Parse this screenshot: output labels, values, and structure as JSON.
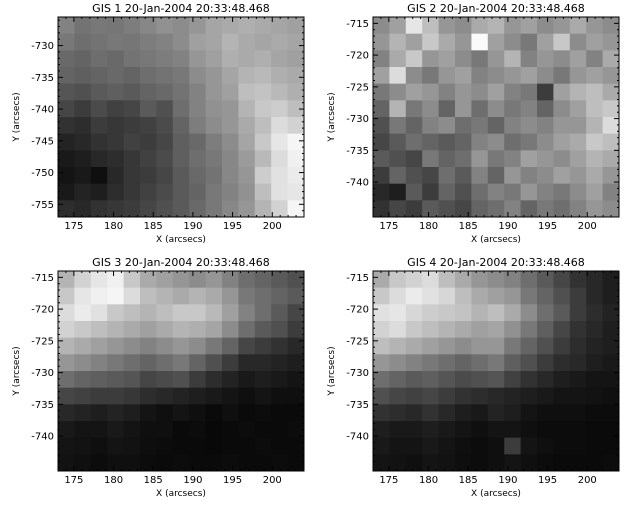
{
  "chart_data": [
    {
      "type": "heatmap",
      "title": "GIS 1 20-Jan-2004 20:33:48.468",
      "xlabel": "X (arcsecs)",
      "ylabel": "Y (arcsecs)",
      "xlim": [
        173,
        204
      ],
      "ylim": [
        -757,
        -725.5
      ],
      "xticks": [
        175,
        180,
        185,
        190,
        195,
        200
      ],
      "yticks": [
        -755,
        -750,
        -745,
        -740,
        -735,
        -730
      ],
      "z": [
        [
          130,
          115,
          120,
          118,
          125,
          135,
          145,
          140,
          150,
          165,
          170,
          175,
          170,
          165,
          160
        ],
        [
          120,
          110,
          115,
          120,
          118,
          125,
          130,
          140,
          160,
          165,
          180,
          170,
          165,
          170,
          165
        ],
        [
          105,
          100,
          110,
          105,
          115,
          120,
          125,
          130,
          150,
          160,
          175,
          170,
          175,
          165,
          160
        ],
        [
          100,
          95,
          100,
          105,
          100,
          110,
          115,
          120,
          140,
          150,
          165,
          180,
          185,
          175,
          170
        ],
        [
          85,
          80,
          90,
          95,
          90,
          100,
          105,
          115,
          130,
          150,
          160,
          190,
          195,
          185,
          175
        ],
        [
          70,
          60,
          75,
          65,
          70,
          90,
          80,
          110,
          130,
          145,
          150,
          180,
          200,
          205,
          190
        ],
        [
          50,
          45,
          60,
          55,
          60,
          65,
          75,
          100,
          125,
          140,
          150,
          170,
          190,
          220,
          210
        ],
        [
          35,
          40,
          50,
          55,
          65,
          60,
          70,
          95,
          105,
          125,
          140,
          165,
          200,
          230,
          245
        ],
        [
          25,
          30,
          40,
          45,
          55,
          65,
          75,
          95,
          110,
          120,
          135,
          155,
          185,
          220,
          240
        ],
        [
          20,
          25,
          15,
          40,
          55,
          60,
          70,
          90,
          105,
          115,
          135,
          150,
          205,
          225,
          235
        ],
        [
          25,
          35,
          30,
          45,
          55,
          65,
          75,
          90,
          100,
          120,
          130,
          145,
          190,
          225,
          230
        ],
        [
          45,
          40,
          50,
          55,
          60,
          70,
          80,
          90,
          105,
          120,
          135,
          150,
          180,
          210,
          245
        ]
      ]
    },
    {
      "type": "heatmap",
      "title": "GIS 2 20-Jan-2004 20:33:48.468",
      "xlabel": "X (arcsecs)",
      "ylabel": "Y (arcsecs)",
      "xlim": [
        173,
        204
      ],
      "ylim": [
        -745.5,
        -714
      ],
      "xticks": [
        175,
        180,
        185,
        190,
        195,
        200
      ],
      "yticks": [
        -740,
        -735,
        -730,
        -725,
        -720,
        -715
      ],
      "z": [
        [
          140,
          160,
          230,
          190,
          150,
          140,
          170,
          180,
          150,
          160,
          140,
          150,
          170,
          150,
          140
        ],
        [
          150,
          180,
          160,
          200,
          170,
          150,
          250,
          160,
          140,
          120,
          160,
          200,
          140,
          160,
          150
        ],
        [
          130,
          170,
          200,
          150,
          160,
          140,
          120,
          150,
          180,
          130,
          150,
          140,
          160,
          130,
          170
        ],
        [
          160,
          220,
          140,
          120,
          150,
          160,
          130,
          140,
          150,
          160,
          140,
          120,
          150,
          160,
          150
        ],
        [
          120,
          140,
          160,
          150,
          130,
          150,
          140,
          160,
          130,
          120,
          60,
          160,
          180,
          190,
          170
        ],
        [
          100,
          180,
          120,
          140,
          100,
          150,
          110,
          140,
          120,
          130,
          100,
          140,
          160,
          190,
          200
        ],
        [
          80,
          120,
          100,
          130,
          140,
          110,
          120,
          100,
          130,
          140,
          130,
          150,
          150,
          180,
          220
        ],
        [
          70,
          90,
          110,
          100,
          90,
          100,
          130,
          140,
          110,
          120,
          140,
          160,
          170,
          200,
          190
        ],
        [
          90,
          80,
          70,
          120,
          100,
          110,
          150,
          120,
          130,
          160,
          150,
          140,
          160,
          180,
          170
        ],
        [
          60,
          100,
          80,
          70,
          110,
          90,
          130,
          100,
          150,
          130,
          140,
          160,
          150,
          170,
          150
        ],
        [
          40,
          30,
          90,
          60,
          100,
          80,
          110,
          130,
          120,
          150,
          130,
          120,
          140,
          160,
          130
        ],
        [
          50,
          70,
          60,
          90,
          80,
          70,
          100,
          110,
          130,
          100,
          120,
          110,
          130,
          150,
          140
        ]
      ]
    },
    {
      "type": "heatmap",
      "title": "GIS 3 20-Jan-2004 20:33:48.468",
      "xlabel": "X (arcsecs)",
      "ylabel": "Y (arcsecs)",
      "xlim": [
        173,
        204
      ],
      "ylim": [
        -745.5,
        -714
      ],
      "xticks": [
        175,
        180,
        185,
        190,
        195,
        200
      ],
      "yticks": [
        -740,
        -735,
        -730,
        -725,
        -720,
        -715
      ],
      "z": [
        [
          180,
          210,
          230,
          240,
          200,
          170,
          160,
          150,
          140,
          150,
          130,
          110,
          100,
          90,
          80
        ],
        [
          200,
          230,
          240,
          245,
          220,
          190,
          180,
          170,
          180,
          170,
          150,
          120,
          110,
          100,
          90
        ],
        [
          220,
          235,
          225,
          200,
          190,
          180,
          190,
          200,
          200,
          185,
          160,
          130,
          110,
          90,
          70
        ],
        [
          210,
          200,
          190,
          180,
          170,
          160,
          170,
          180,
          175,
          165,
          140,
          110,
          90,
          80,
          60
        ],
        [
          180,
          170,
          160,
          150,
          140,
          130,
          140,
          150,
          140,
          120,
          100,
          70,
          60,
          50,
          40
        ],
        [
          150,
          140,
          130,
          120,
          110,
          100,
          110,
          120,
          100,
          80,
          60,
          40,
          40,
          35,
          30
        ],
        [
          110,
          100,
          95,
          90,
          85,
          70,
          75,
          80,
          60,
          45,
          35,
          25,
          30,
          25,
          20
        ],
        [
          70,
          65,
          60,
          60,
          55,
          45,
          40,
          35,
          30,
          25,
          20,
          15,
          20,
          15,
          15
        ],
        [
          40,
          35,
          30,
          35,
          30,
          20,
          15,
          20,
          15,
          10,
          15,
          10,
          12,
          10,
          10
        ],
        [
          25,
          20,
          20,
          25,
          20,
          15,
          15,
          10,
          12,
          8,
          10,
          12,
          10,
          10,
          12
        ],
        [
          20,
          18,
          15,
          20,
          18,
          14,
          12,
          10,
          10,
          8,
          10,
          10,
          12,
          10,
          10
        ],
        [
          18,
          15,
          12,
          15,
          15,
          12,
          10,
          12,
          10,
          10,
          12,
          10,
          10,
          12,
          10
        ]
      ]
    },
    {
      "type": "heatmap",
      "title": "GIS 4 20-Jan-2004 20:33:48.468",
      "xlabel": "X (arcsecs)",
      "ylabel": "Y (arcsecs)",
      "xlim": [
        173,
        204
      ],
      "ylim": [
        -745.5,
        -714
      ],
      "xticks": [
        175,
        180,
        185,
        190,
        195,
        200
      ],
      "yticks": [
        -740,
        -735,
        -730,
        -725,
        -720,
        -715
      ],
      "z": [
        [
          170,
          200,
          210,
          220,
          190,
          170,
          150,
          140,
          130,
          110,
          90,
          70,
          50,
          40,
          30
        ],
        [
          200,
          220,
          235,
          225,
          215,
          190,
          170,
          160,
          150,
          120,
          100,
          80,
          60,
          40,
          30
        ],
        [
          225,
          230,
          215,
          205,
          200,
          195,
          180,
          190,
          170,
          140,
          110,
          90,
          60,
          45,
          35
        ],
        [
          210,
          220,
          200,
          190,
          180,
          170,
          160,
          165,
          145,
          120,
          95,
          70,
          50,
          40,
          30
        ],
        [
          190,
          180,
          170,
          160,
          150,
          140,
          150,
          150,
          120,
          100,
          80,
          60,
          45,
          35,
          30
        ],
        [
          150,
          140,
          130,
          120,
          110,
          100,
          110,
          120,
          95,
          80,
          60,
          45,
          40,
          30,
          25
        ],
        [
          110,
          100,
          90,
          95,
          85,
          75,
          80,
          85,
          65,
          50,
          40,
          30,
          25,
          20,
          20
        ],
        [
          80,
          70,
          65,
          70,
          60,
          50,
          45,
          40,
          35,
          30,
          25,
          20,
          20,
          18,
          15
        ],
        [
          50,
          45,
          40,
          50,
          40,
          30,
          25,
          35,
          30,
          20,
          15,
          15,
          15,
          12,
          12
        ],
        [
          30,
          25,
          25,
          30,
          25,
          20,
          15,
          20,
          20,
          15,
          12,
          12,
          12,
          10,
          10
        ],
        [
          25,
          20,
          20,
          25,
          20,
          15,
          12,
          15,
          60,
          20,
          15,
          12,
          12,
          10,
          10
        ],
        [
          20,
          18,
          15,
          20,
          18,
          14,
          12,
          15,
          20,
          15,
          12,
          10,
          10,
          10,
          12
        ]
      ]
    }
  ]
}
